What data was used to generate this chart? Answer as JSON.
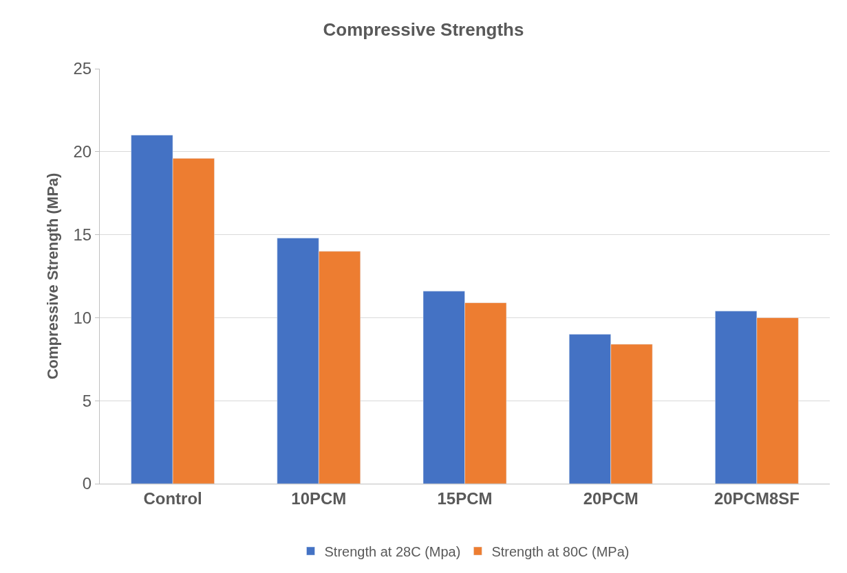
{
  "chart_data": {
    "type": "bar",
    "title": "Compressive Strengths",
    "ylabel": "Compressive Strength (MPa)",
    "categories": [
      "Control",
      "10PCM",
      "15PCM",
      "20PCM",
      "20PCM8SF"
    ],
    "series": [
      {
        "name": "Strength at 28C (Mpa)",
        "color": "#4472c4",
        "values": [
          21.0,
          14.8,
          11.6,
          9.0,
          10.4
        ]
      },
      {
        "name": "Strength at 80C (MPa)",
        "color": "#ed7d31",
        "values": [
          19.6,
          14.0,
          10.9,
          8.4,
          10.0
        ]
      }
    ],
    "ylim": [
      0,
      25
    ],
    "yticks": [
      0,
      5,
      10,
      15,
      20,
      25
    ],
    "grid": "y",
    "legend": "bottom"
  }
}
